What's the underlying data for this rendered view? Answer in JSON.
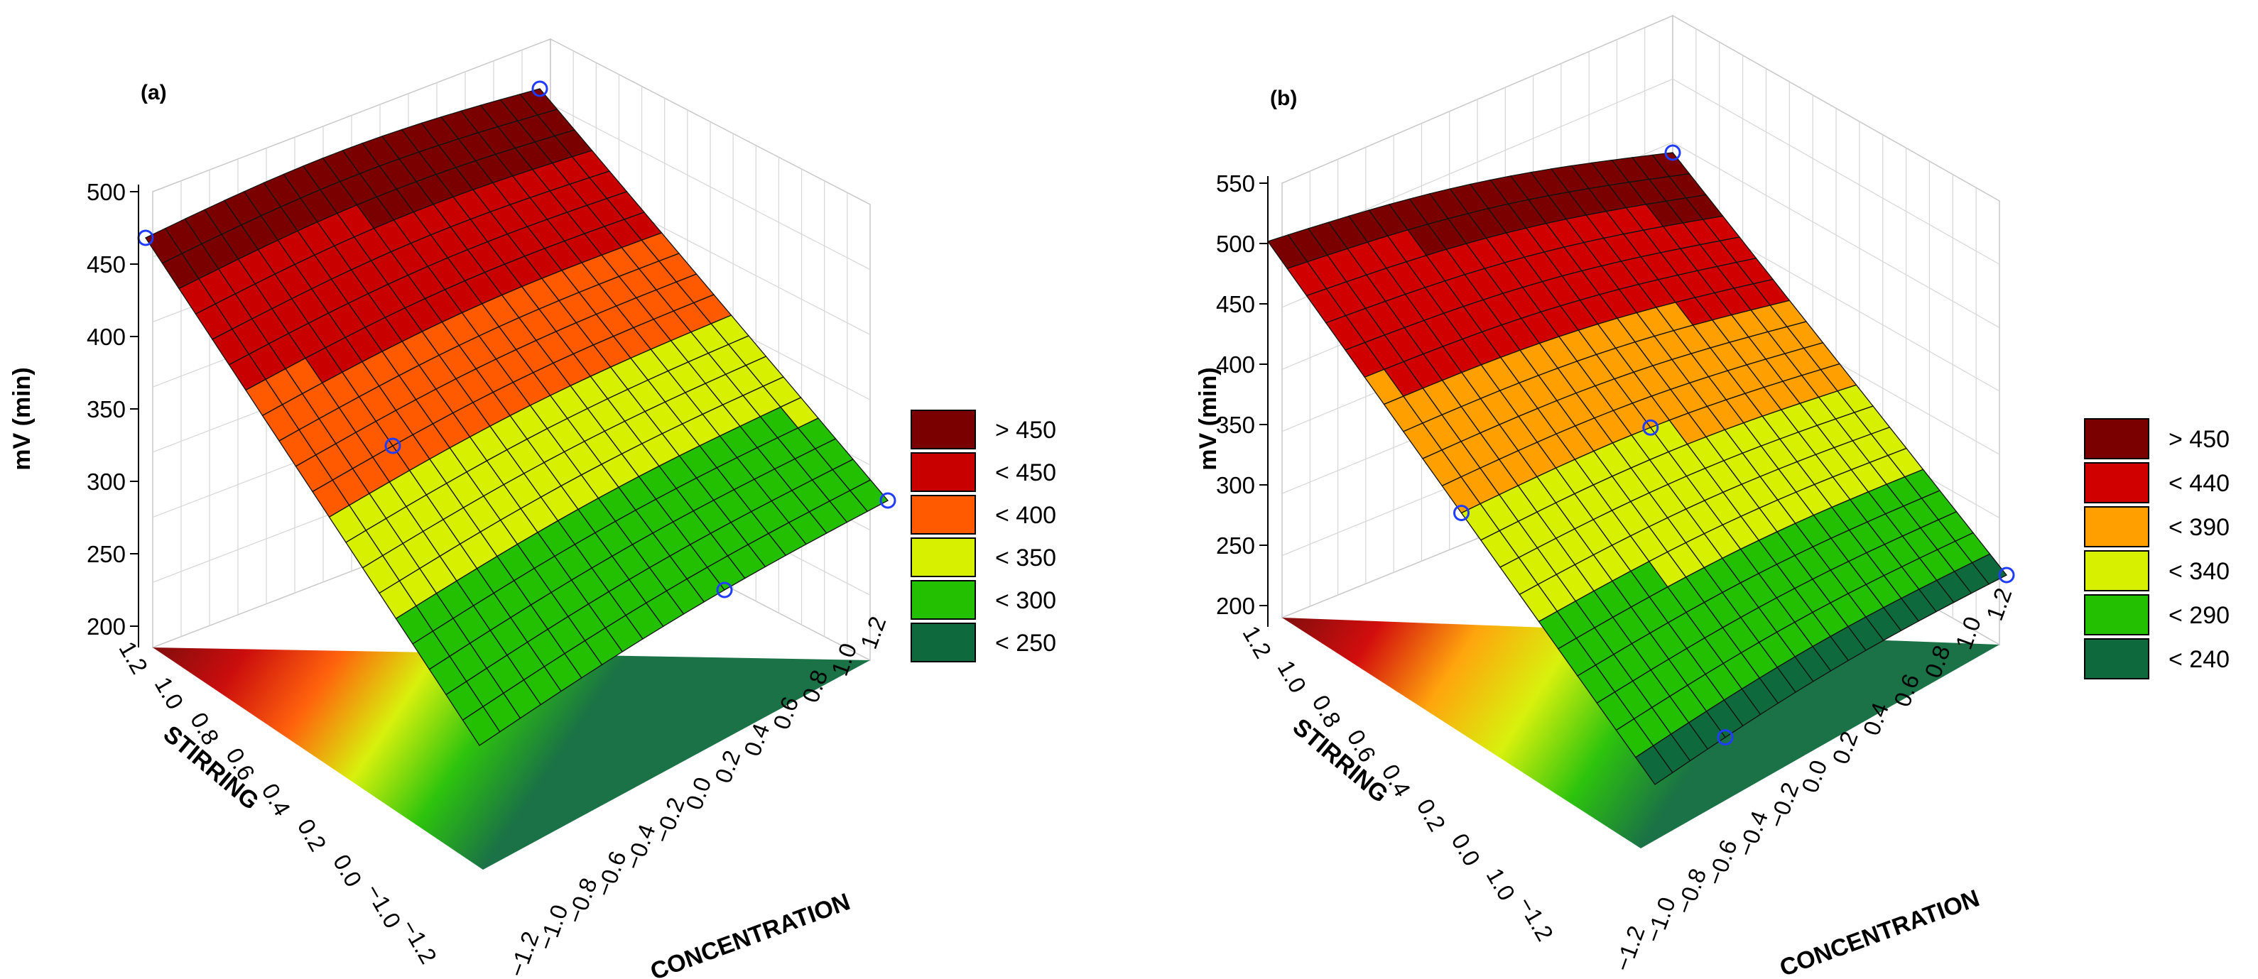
{
  "chart_data": [
    {
      "panel": "(a)",
      "type": "surface3d",
      "zlabel": "mV (min)",
      "xlabel": "STIRRING",
      "ylabel": "CONCENTRATION",
      "z_ticks": [
        "500",
        "450",
        "400",
        "350",
        "300",
        "250",
        "200"
      ],
      "stirring_ticks": [
        "1.2",
        "1.0",
        "0.8",
        "0.6",
        "0.4",
        "0.2",
        "0.0",
        "−1.0",
        "−1.2"
      ],
      "concentration_ticks": [
        "−1.2",
        "−1.0",
        "−0.8",
        "−0.6",
        "−0.4",
        "−0.2",
        "0.0",
        "0.2",
        "0.4",
        "0.6",
        "0.8",
        "1.0",
        "1.2"
      ],
      "zlim": [
        200,
        500
      ],
      "legend": [
        {
          "label": "> 450",
          "color": "#7a0000"
        },
        {
          "label": "< 450",
          "color": "#c80000"
        },
        {
          "label": "< 400",
          "color": "#ff5a00"
        },
        {
          "label": "< 350",
          "color": "#d6f000"
        },
        {
          "label": "< 300",
          "color": "#22c000"
        },
        {
          "label": "< 250",
          "color": "#0e6a3c"
        }
      ],
      "surface_corners": {
        "high_stirring_low_conc": 470,
        "high_stirring_high_conc": 490,
        "low_stirring_low_conc": 250,
        "low_stirring_high_conc": 245
      },
      "design_points": [
        {
          "stirring": 1.0,
          "concentration": -1.0,
          "mv": 440
        },
        {
          "stirring": 1.0,
          "concentration": 1.0,
          "mv": 475
        },
        {
          "stirring": -1.0,
          "concentration": 1.0,
          "mv": 350
        },
        {
          "stirring": 0.0,
          "concentration": -0.6,
          "mv": 290
        },
        {
          "stirring": -1.0,
          "concentration": 0.2,
          "mv": 250
        }
      ]
    },
    {
      "panel": "(b)",
      "type": "surface3d",
      "zlabel": "mV (min)",
      "xlabel": "STIRRING",
      "ylabel": "CONCENTRATION",
      "z_ticks": [
        "550",
        "500",
        "450",
        "400",
        "350",
        "300",
        "250",
        "200"
      ],
      "stirring_ticks": [
        "1.2",
        "1.0",
        "0.8",
        "0.6",
        "0.4",
        "0.2",
        "0.0",
        "1.0",
        "−1.2"
      ],
      "concentration_ticks": [
        "−1.2",
        "−1.0",
        "−0.8",
        "−0.6",
        "−0.4",
        "−0.2",
        "0.0",
        "0.2",
        "0.4",
        "0.6",
        "0.8",
        "1.0",
        "1.2"
      ],
      "zlim": [
        200,
        550
      ],
      "legend": [
        {
          "label": "> 450",
          "color": "#7a0000"
        },
        {
          "label": "< 440",
          "color": "#d00000"
        },
        {
          "label": "< 390",
          "color": "#ffa000"
        },
        {
          "label": "< 340",
          "color": "#d6f000"
        },
        {
          "label": "< 290",
          "color": "#22c000"
        },
        {
          "label": "< 240",
          "color": "#0e6a3c"
        }
      ],
      "surface_corners": {
        "high_stirring_low_conc": 505,
        "high_stirring_high_conc": 530,
        "low_stirring_low_conc": 240,
        "low_stirring_high_conc": 250
      },
      "design_points": [
        {
          "stirring": 1.0,
          "concentration": 1.0,
          "mv": 500
        },
        {
          "stirring": -1.0,
          "concentration": 1.0,
          "mv": 350
        },
        {
          "stirring": 0.0,
          "concentration": 0.0,
          "mv": 335
        },
        {
          "stirring": 0.0,
          "concentration": -1.0,
          "mv": 270
        },
        {
          "stirring": -1.0,
          "concentration": -0.6,
          "mv": 245
        }
      ]
    }
  ]
}
